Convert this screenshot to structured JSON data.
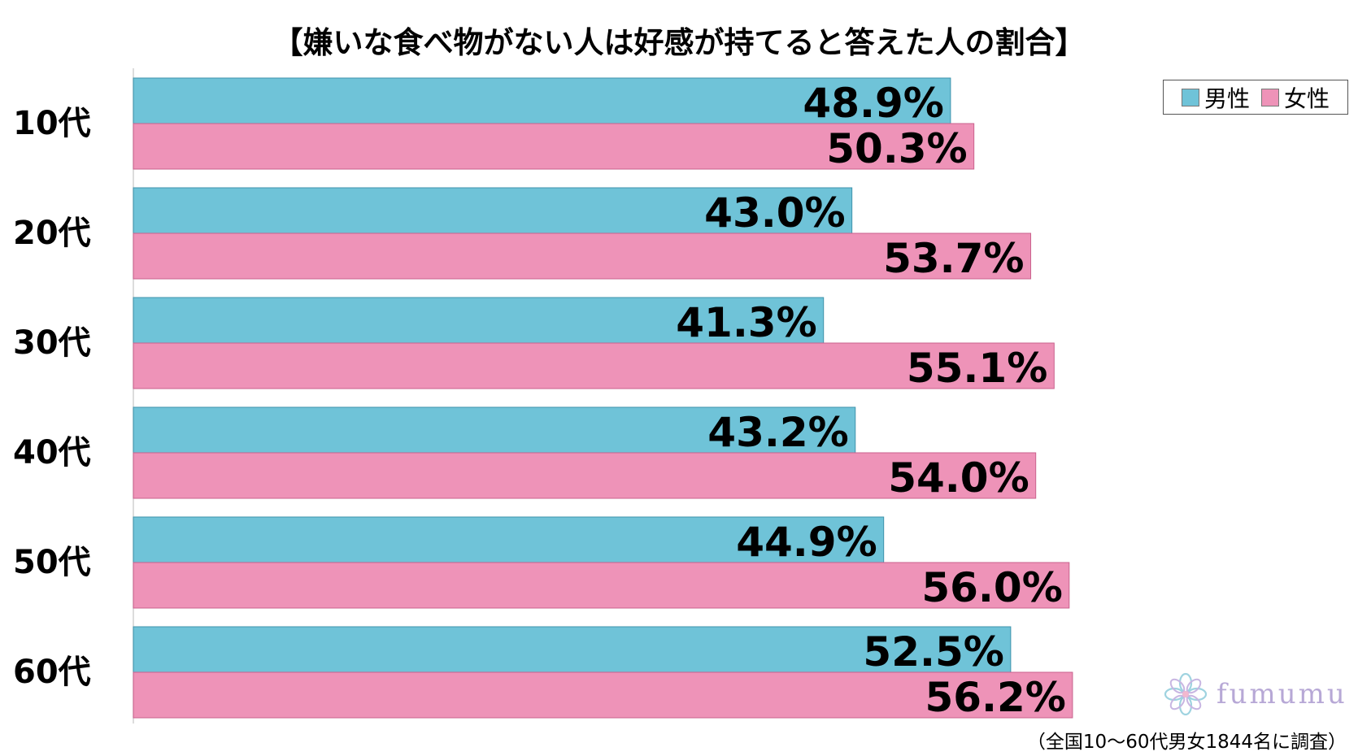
{
  "chart_data": {
    "type": "bar",
    "orientation": "horizontal",
    "title": "【嫌いな食べ物がない人は好感が持てると答えた人の割合】",
    "categories": [
      "10代",
      "20代",
      "30代",
      "40代",
      "50代",
      "60代"
    ],
    "series": [
      {
        "name": "男性",
        "color": "#6fc3d8",
        "values": [
          48.9,
          43.0,
          41.3,
          43.2,
          44.9,
          52.5
        ],
        "labels": [
          "48.9%",
          "43.0%",
          "41.3%",
          "43.2%",
          "44.9%",
          "52.5%"
        ]
      },
      {
        "name": "女性",
        "color": "#ee93b8",
        "values": [
          50.3,
          53.7,
          55.1,
          54.0,
          56.0,
          56.2
        ],
        "labels": [
          "50.3%",
          "53.7%",
          "55.1%",
          "54.0%",
          "56.0%",
          "56.2%"
        ]
      }
    ],
    "xlim": [
      0,
      60
    ],
    "grid": false,
    "legend": "top-right"
  },
  "footnote": "（全国10～60代男女1844名に調査）",
  "logo": {
    "text": "fumumu",
    "icon": "flower-logo-icon"
  }
}
